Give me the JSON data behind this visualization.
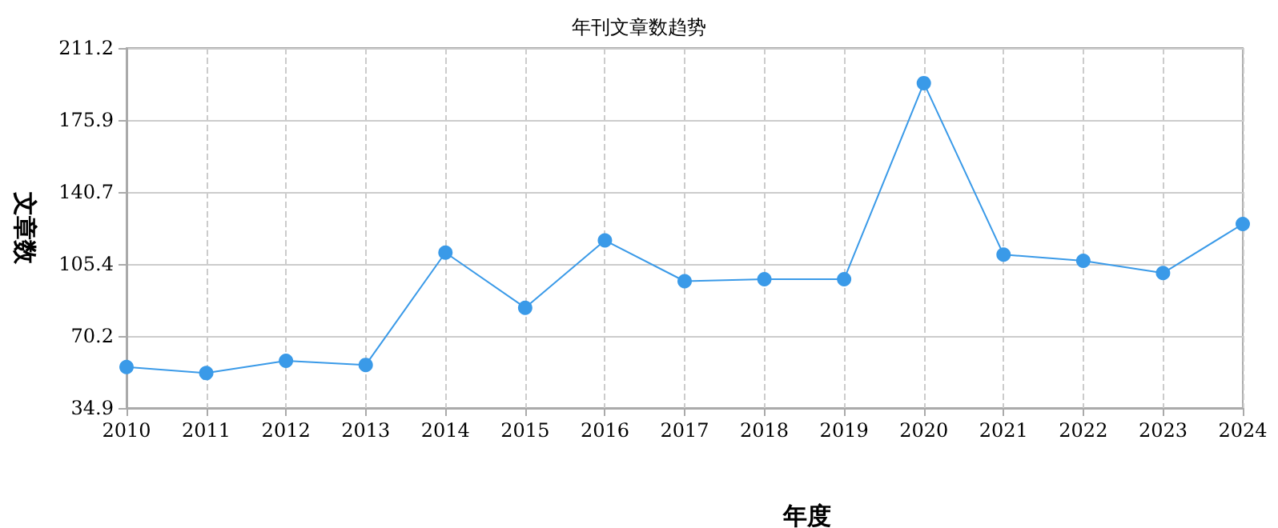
{
  "chart_data": {
    "type": "line",
    "title": "年刊文章数趋势",
    "xlabel": "年度",
    "ylabel": "文章数",
    "categories": [
      "2010",
      "2011",
      "2012",
      "2013",
      "2014",
      "2015",
      "2016",
      "2017",
      "2018",
      "2019",
      "2020",
      "2021",
      "2022",
      "2023",
      "2024"
    ],
    "series": [
      {
        "color": "#3a9ae8",
        "values": [
          55,
          52,
          58,
          56,
          111,
          84,
          117,
          97,
          98,
          98,
          194,
          110,
          107,
          101,
          125
        ]
      }
    ],
    "ylim": [
      34.9,
      211.2
    ],
    "yticks": [
      34.9,
      70.2,
      105.4,
      140.7,
      175.9,
      211.2
    ],
    "grid": true,
    "marker": "circle",
    "line_style": "solid"
  }
}
